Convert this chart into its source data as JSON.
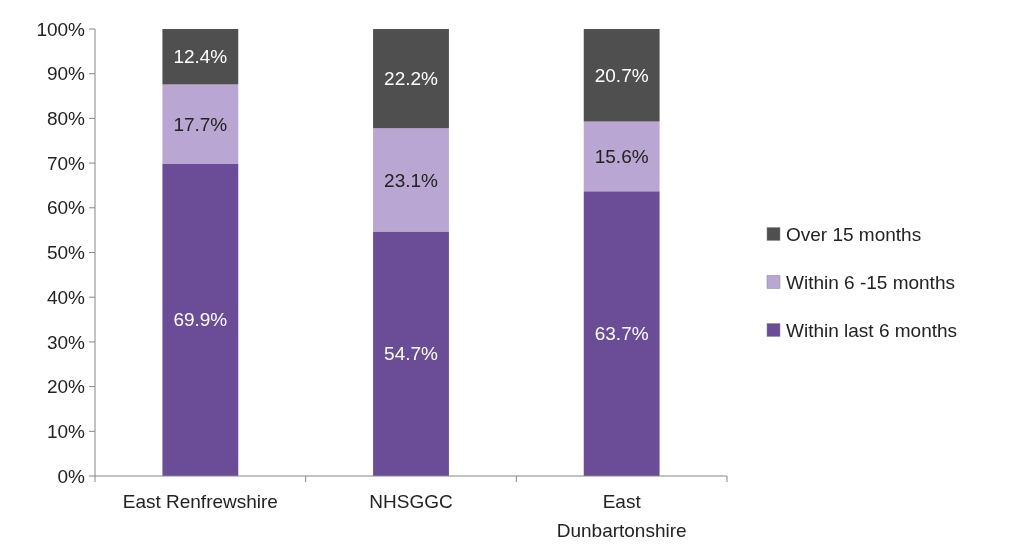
{
  "chart_data": {
    "type": "bar",
    "stacked": true,
    "categories": [
      "East Renfrewshire",
      "NHSGGC",
      "East Dunbartonshire"
    ],
    "series": [
      {
        "name": "Within last 6 months",
        "color": "#6a4c97",
        "values": [
          69.9,
          54.7,
          63.7
        ],
        "value_labels": [
          "69.9%",
          "54.7%",
          "63.7%"
        ]
      },
      {
        "name": "Within 6 -15 months",
        "color": "#b9a6d3",
        "values": [
          17.7,
          23.1,
          15.6
        ],
        "value_labels": [
          "17.7%",
          "23.1%",
          "15.6%"
        ]
      },
      {
        "name": "Over 15 months",
        "color": "#4f4f4f",
        "values": [
          12.4,
          22.2,
          20.7
        ],
        "value_labels": [
          "12.4%",
          "22.2%",
          "20.7%"
        ]
      }
    ],
    "ylim": [
      0,
      100
    ],
    "yticks": [
      {
        "value": 0,
        "label": "0%"
      },
      {
        "value": 10,
        "label": "10%"
      },
      {
        "value": 20,
        "label": "20%"
      },
      {
        "value": 30,
        "label": "30%"
      },
      {
        "value": 40,
        "label": "40%"
      },
      {
        "value": 50,
        "label": "50%"
      },
      {
        "value": 60,
        "label": "60%"
      },
      {
        "value": 70,
        "label": "70%"
      },
      {
        "value": 80,
        "label": "80%"
      },
      {
        "value": 90,
        "label": "90%"
      },
      {
        "value": 100,
        "label": "100%"
      }
    ],
    "grid": false,
    "legend": "right"
  }
}
